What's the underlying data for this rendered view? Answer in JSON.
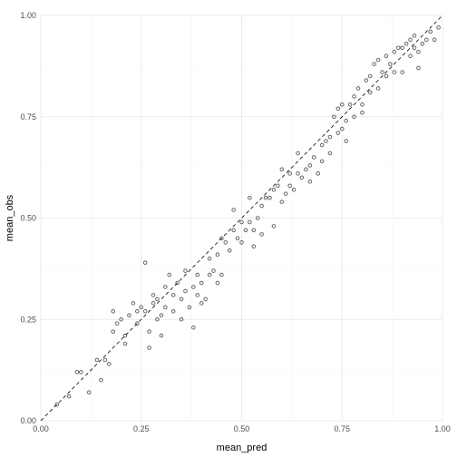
{
  "chart_data": {
    "type": "scatter",
    "xlabel": "mean_pred",
    "ylabel": "mean_obs",
    "xlim": [
      0,
      1
    ],
    "ylim": [
      0,
      1
    ],
    "xticks": [
      "0.00",
      "0.25",
      "0.50",
      "0.75",
      "1.00"
    ],
    "yticks": [
      "0.00",
      "0.25",
      "0.50",
      "0.75",
      "1.00"
    ],
    "grid": true,
    "reference_line": {
      "style": "dashed",
      "slope": 1,
      "intercept": 0
    },
    "point_color": "#000000",
    "point_alpha": 0.6,
    "points": [
      [
        0.04,
        0.04
      ],
      [
        0.07,
        0.06
      ],
      [
        0.09,
        0.12
      ],
      [
        0.1,
        0.12
      ],
      [
        0.12,
        0.07
      ],
      [
        0.14,
        0.15
      ],
      [
        0.15,
        0.1
      ],
      [
        0.16,
        0.15
      ],
      [
        0.17,
        0.14
      ],
      [
        0.18,
        0.27
      ],
      [
        0.18,
        0.22
      ],
      [
        0.19,
        0.24
      ],
      [
        0.2,
        0.25
      ],
      [
        0.21,
        0.21
      ],
      [
        0.21,
        0.19
      ],
      [
        0.22,
        0.26
      ],
      [
        0.23,
        0.29
      ],
      [
        0.24,
        0.27
      ],
      [
        0.24,
        0.24
      ],
      [
        0.25,
        0.28
      ],
      [
        0.26,
        0.27
      ],
      [
        0.26,
        0.39
      ],
      [
        0.27,
        0.22
      ],
      [
        0.27,
        0.18
      ],
      [
        0.28,
        0.31
      ],
      [
        0.28,
        0.29
      ],
      [
        0.29,
        0.25
      ],
      [
        0.29,
        0.3
      ],
      [
        0.3,
        0.26
      ],
      [
        0.3,
        0.21
      ],
      [
        0.31,
        0.33
      ],
      [
        0.31,
        0.28
      ],
      [
        0.32,
        0.36
      ],
      [
        0.33,
        0.31
      ],
      [
        0.33,
        0.27
      ],
      [
        0.34,
        0.34
      ],
      [
        0.35,
        0.3
      ],
      [
        0.35,
        0.25
      ],
      [
        0.36,
        0.37
      ],
      [
        0.36,
        0.32
      ],
      [
        0.37,
        0.28
      ],
      [
        0.38,
        0.33
      ],
      [
        0.38,
        0.23
      ],
      [
        0.39,
        0.36
      ],
      [
        0.39,
        0.31
      ],
      [
        0.4,
        0.34
      ],
      [
        0.4,
        0.29
      ],
      [
        0.41,
        0.3
      ],
      [
        0.42,
        0.4
      ],
      [
        0.42,
        0.36
      ],
      [
        0.43,
        0.37
      ],
      [
        0.44,
        0.41
      ],
      [
        0.44,
        0.34
      ],
      [
        0.45,
        0.45
      ],
      [
        0.45,
        0.36
      ],
      [
        0.46,
        0.44
      ],
      [
        0.47,
        0.42
      ],
      [
        0.48,
        0.47
      ],
      [
        0.48,
        0.52
      ],
      [
        0.49,
        0.45
      ],
      [
        0.5,
        0.49
      ],
      [
        0.5,
        0.44
      ],
      [
        0.51,
        0.47
      ],
      [
        0.52,
        0.49
      ],
      [
        0.52,
        0.55
      ],
      [
        0.53,
        0.43
      ],
      [
        0.53,
        0.47
      ],
      [
        0.54,
        0.5
      ],
      [
        0.55,
        0.46
      ],
      [
        0.55,
        0.53
      ],
      [
        0.56,
        0.55
      ],
      [
        0.57,
        0.55
      ],
      [
        0.58,
        0.48
      ],
      [
        0.58,
        0.57
      ],
      [
        0.59,
        0.58
      ],
      [
        0.6,
        0.54
      ],
      [
        0.6,
        0.62
      ],
      [
        0.61,
        0.56
      ],
      [
        0.62,
        0.61
      ],
      [
        0.62,
        0.58
      ],
      [
        0.63,
        0.57
      ],
      [
        0.64,
        0.61
      ],
      [
        0.64,
        0.66
      ],
      [
        0.65,
        0.6
      ],
      [
        0.66,
        0.62
      ],
      [
        0.67,
        0.63
      ],
      [
        0.67,
        0.59
      ],
      [
        0.68,
        0.65
      ],
      [
        0.69,
        0.61
      ],
      [
        0.7,
        0.64
      ],
      [
        0.7,
        0.68
      ],
      [
        0.71,
        0.69
      ],
      [
        0.72,
        0.7
      ],
      [
        0.72,
        0.66
      ],
      [
        0.73,
        0.75
      ],
      [
        0.74,
        0.71
      ],
      [
        0.74,
        0.77
      ],
      [
        0.75,
        0.78
      ],
      [
        0.75,
        0.72
      ],
      [
        0.76,
        0.74
      ],
      [
        0.76,
        0.69
      ],
      [
        0.77,
        0.78
      ],
      [
        0.78,
        0.8
      ],
      [
        0.78,
        0.75
      ],
      [
        0.79,
        0.82
      ],
      [
        0.8,
        0.78
      ],
      [
        0.8,
        0.76
      ],
      [
        0.81,
        0.84
      ],
      [
        0.82,
        0.81
      ],
      [
        0.82,
        0.85
      ],
      [
        0.83,
        0.88
      ],
      [
        0.84,
        0.82
      ],
      [
        0.84,
        0.89
      ],
      [
        0.85,
        0.86
      ],
      [
        0.86,
        0.9
      ],
      [
        0.86,
        0.85
      ],
      [
        0.87,
        0.88
      ],
      [
        0.88,
        0.91
      ],
      [
        0.88,
        0.86
      ],
      [
        0.89,
        0.92
      ],
      [
        0.9,
        0.92
      ],
      [
        0.9,
        0.86
      ],
      [
        0.91,
        0.93
      ],
      [
        0.92,
        0.9
      ],
      [
        0.92,
        0.94
      ],
      [
        0.93,
        0.92
      ],
      [
        0.93,
        0.95
      ],
      [
        0.94,
        0.91
      ],
      [
        0.94,
        0.87
      ],
      [
        0.95,
        0.93
      ],
      [
        0.96,
        0.94
      ],
      [
        0.97,
        0.96
      ],
      [
        0.98,
        0.94
      ],
      [
        0.99,
        0.97
      ]
    ]
  }
}
